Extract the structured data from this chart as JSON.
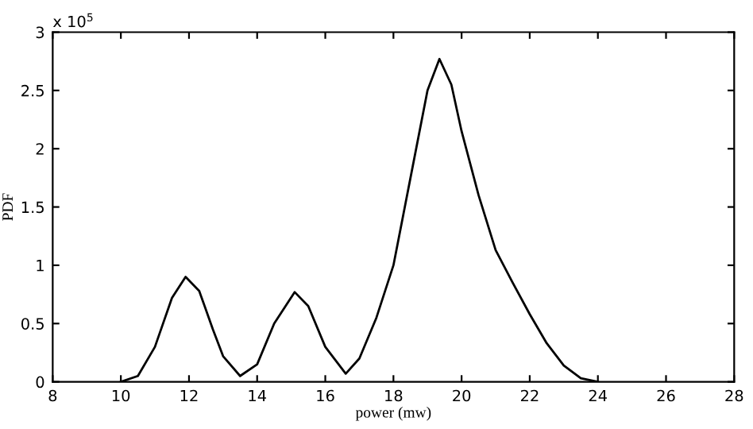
{
  "chart_data": {
    "type": "line",
    "xlabel": "power (mw)",
    "ylabel": "PDF",
    "annotations": [
      "x 10$^{5}$"
    ],
    "series": [
      {
        "color": "#000000",
        "x": [
          10,
          10.5,
          11,
          11.5,
          11.9,
          12.3,
          12.7,
          13,
          13.5,
          14,
          14.5,
          15.1,
          15.5,
          16,
          16.6,
          17,
          17.5,
          18,
          18.5,
          19,
          19.35,
          19.7,
          20,
          20.5,
          21,
          21.5,
          22,
          22.5,
          23,
          23.5,
          24
        ],
        "values": [
          0,
          0.05,
          0.3,
          0.72,
          0.9,
          0.78,
          0.45,
          0.22,
          0.05,
          0.15,
          0.5,
          0.77,
          0.65,
          0.3,
          0.07,
          0.2,
          0.55,
          1.0,
          1.75,
          2.5,
          2.77,
          2.55,
          2.15,
          1.6,
          1.13,
          0.85,
          0.58,
          0.33,
          0.14,
          0.03,
          0
        ]
      }
    ],
    "xlim": [
      8,
      28
    ],
    "xticks": [
      8,
      10,
      12,
      14,
      16,
      18,
      20,
      22,
      24,
      26,
      28
    ],
    "ylim": [
      0,
      3
    ],
    "yticks": [
      0,
      0.5,
      1,
      1.5,
      2,
      2.5,
      3
    ],
    "grid": false,
    "legend": false,
    "marker": "none",
    "line_style": "solid"
  }
}
